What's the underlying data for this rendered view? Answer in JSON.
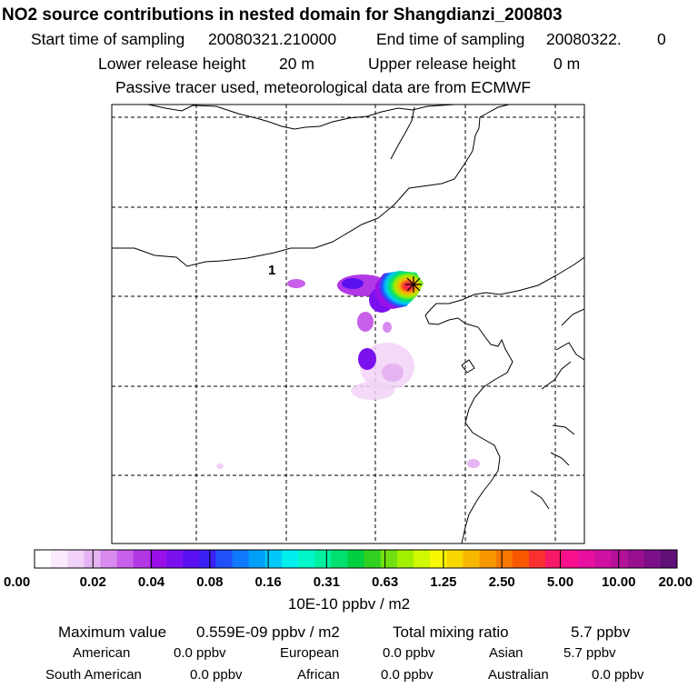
{
  "title": "NO2 source contributions in nested domain for Shangdianzi_200803",
  "header": {
    "start_label": "Start time of sampling",
    "start_value": "20080321.210000",
    "end_label": "End time of sampling",
    "end_value": "20080322.",
    "end_suffix": "0",
    "lower_label": "Lower release height",
    "lower_value": "20 m",
    "upper_label": "Upper release height",
    "upper_value": "0 m",
    "note": "Passive tracer used, meteorological data are from ECMWF"
  },
  "map": {
    "site_marker_label": "1",
    "site_symbol": "star-marker"
  },
  "colorbar": {
    "labels": [
      "0.00",
      "0.02",
      "0.04",
      "0.08",
      "0.16",
      "0.31",
      "0.63",
      "1.25",
      "2.50",
      "5.00",
      "10.00",
      "20.00"
    ],
    "unit": "10E-10 ppbv / m2",
    "colors": [
      "#ffffff",
      "#f9eafc",
      "#f2d2f8",
      "#e6b4f2",
      "#d88aee",
      "#c860ea",
      "#b238e6",
      "#9a10e8",
      "#7a10ee",
      "#5a10f0",
      "#3a20f4",
      "#2050f8",
      "#1078fa",
      "#00a0fa",
      "#00c8f8",
      "#00eeee",
      "#00f8c8",
      "#00f0a0",
      "#00e070",
      "#00d040",
      "#30d020",
      "#70e010",
      "#a0f000",
      "#d0f800",
      "#f8f800",
      "#f8d800",
      "#f8b800",
      "#f89800",
      "#f87800",
      "#f85800",
      "#f83030",
      "#f81868",
      "#f8108c",
      "#e810a0",
      "#d010a0",
      "#b41098",
      "#981090",
      "#7c1088",
      "#601078"
    ]
  },
  "stats": {
    "max_label": "Maximum value",
    "max_value": "0.559E-09 ppbv / m2",
    "total_label": "Total mixing ratio",
    "total_value": "5.7 ppbv",
    "regions": [
      {
        "name": "American",
        "value": "0.0 ppbv"
      },
      {
        "name": "European",
        "value": "0.0 ppbv"
      },
      {
        "name": "Asian",
        "value": "5.7 ppbv"
      },
      {
        "name": "South American",
        "value": "0.0 ppbv"
      },
      {
        "name": "African",
        "value": "0.0 ppbv"
      },
      {
        "name": "Australian",
        "value": "0.0 ppbv"
      }
    ]
  }
}
